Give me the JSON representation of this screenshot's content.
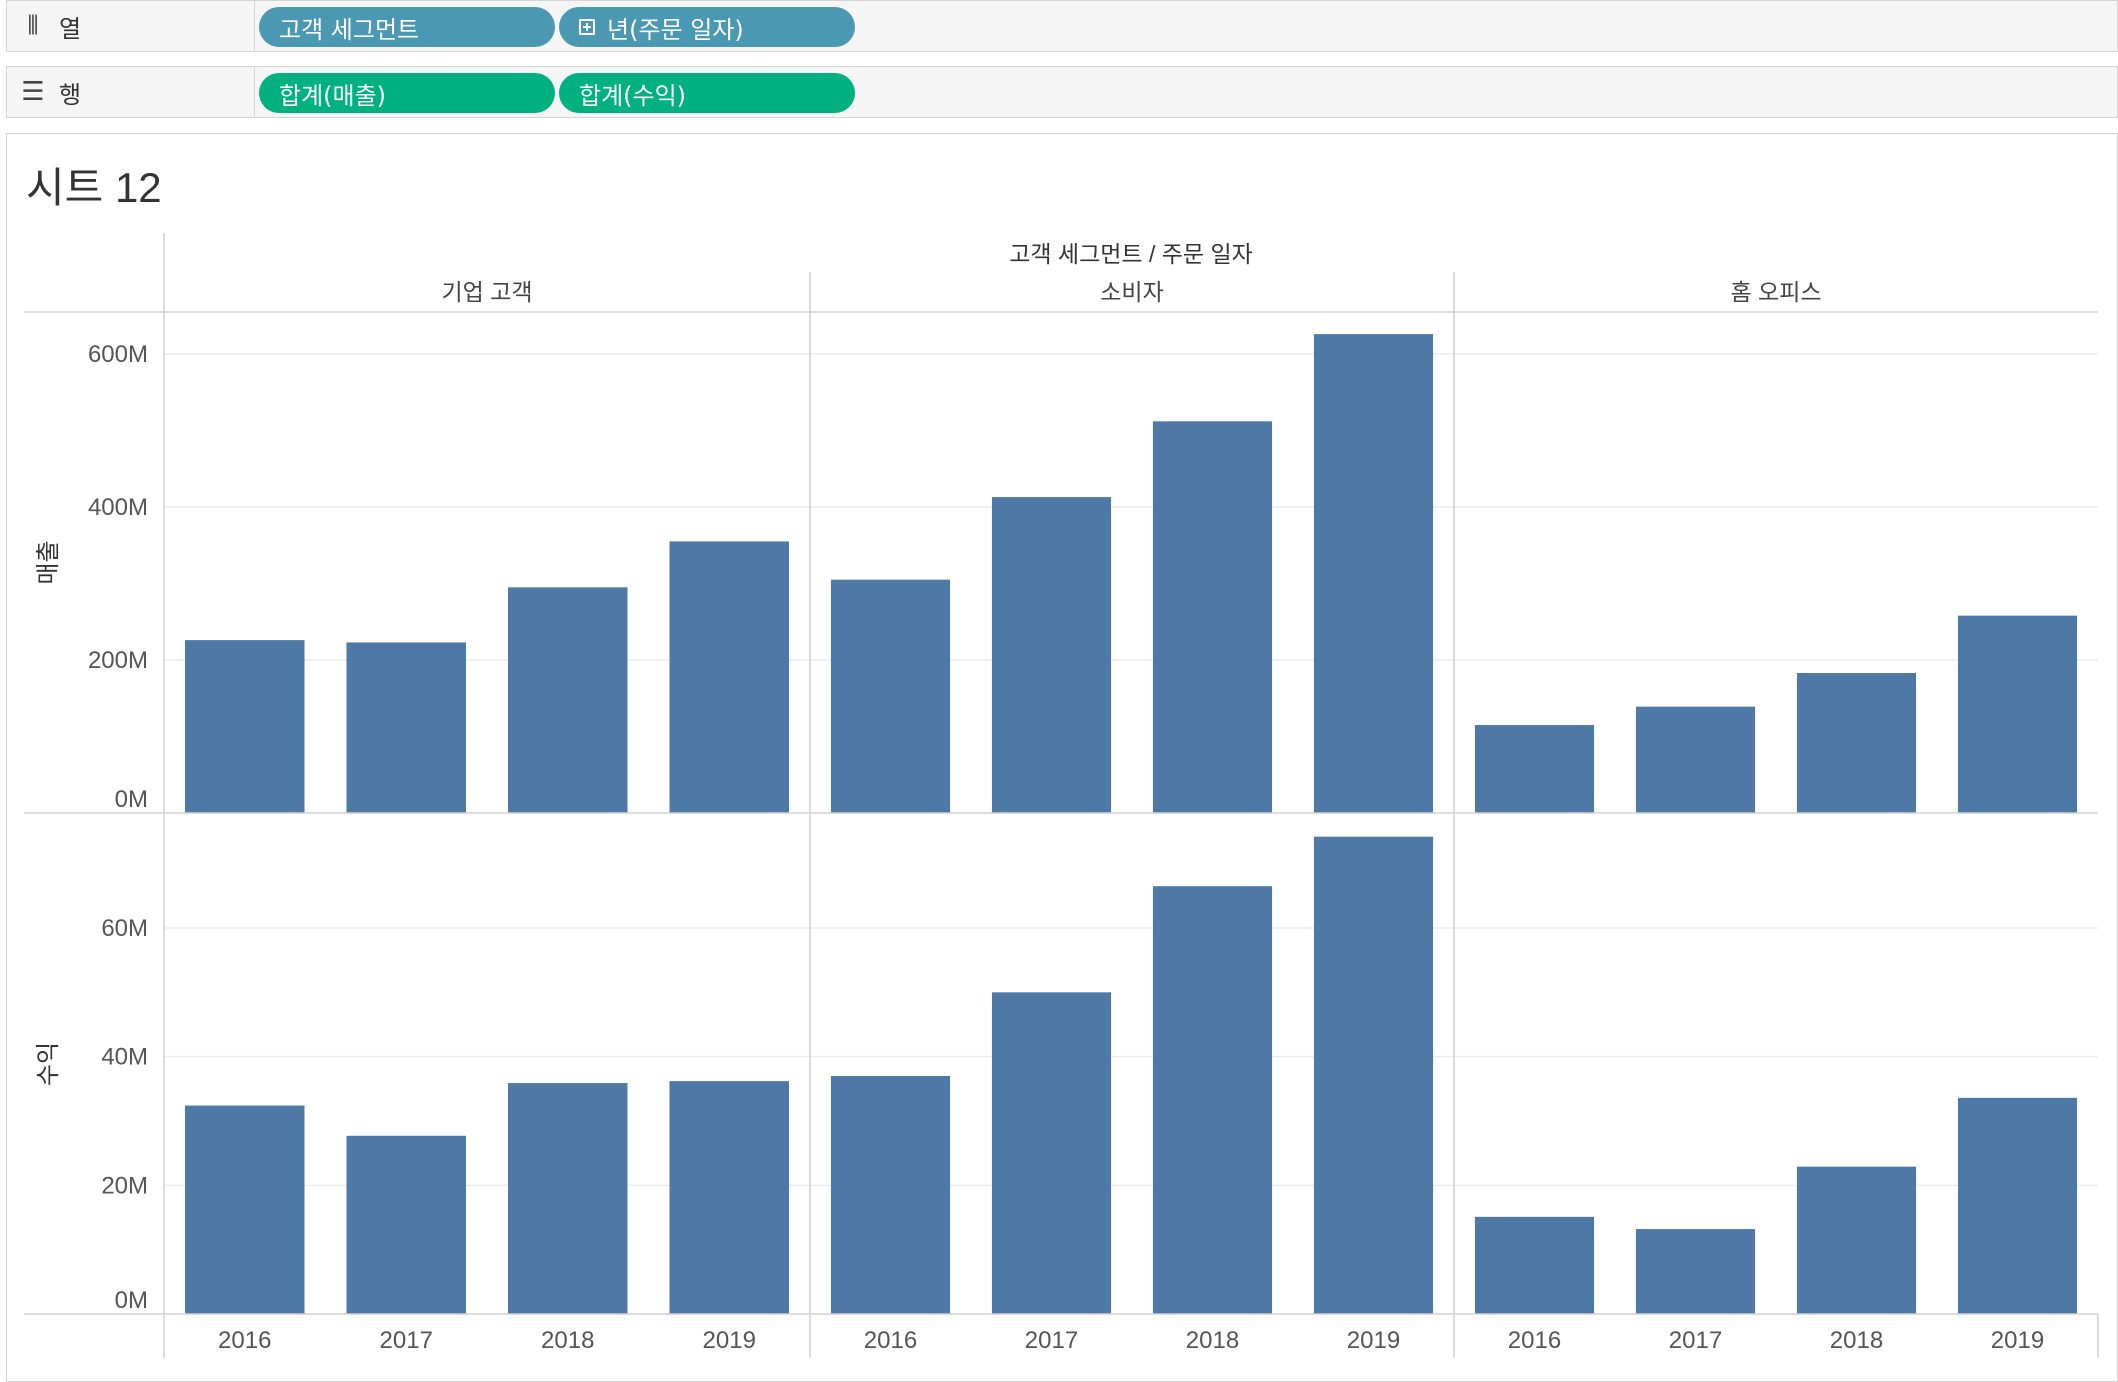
{
  "shelves": {
    "columns": {
      "label": "열",
      "icon": "columns-icon",
      "pills": [
        {
          "label": "고객 세그먼트",
          "kind": "dimension"
        },
        {
          "label": "년(주문 일자)",
          "kind": "dimension",
          "icon": "expand-plus-icon"
        }
      ]
    },
    "rows": {
      "label": "행",
      "icon": "rows-list-icon",
      "pills": [
        {
          "label": "합계(매출)",
          "kind": "measure"
        },
        {
          "label": "합계(수익)",
          "kind": "measure"
        }
      ]
    }
  },
  "sheet": {
    "title": "시트 12"
  },
  "colors": {
    "bar": "#4e79a7",
    "dimension_pill": "#4a98b2",
    "measure_pill": "#00b180"
  },
  "chart_data": {
    "type": "bar",
    "column_header": "고객 세그먼트 / 주문 일자",
    "segments": [
      "기업 고객",
      "소비자",
      "홈 오피스"
    ],
    "categories": [
      "2016",
      "2017",
      "2018",
      "2019"
    ],
    "grid": true,
    "panels": [
      {
        "measure": "매출",
        "ylim": [
          0,
          660
        ],
        "ticks": [
          0,
          200,
          400,
          600
        ],
        "tick_labels": [
          "0M",
          "200M",
          "400M",
          "600M"
        ],
        "values": [
          [
            226,
            223,
            295,
            355
          ],
          [
            305,
            413,
            512,
            626
          ],
          [
            115,
            139,
            183,
            258
          ]
        ]
      },
      {
        "measure": "수익",
        "ylim": [
          0,
          76
        ],
        "ticks": [
          0,
          20,
          40,
          60
        ],
        "tick_labels": [
          "0M",
          "20M",
          "40M",
          "60M"
        ],
        "values": [
          [
            32.4,
            27.7,
            35.9,
            36.2
          ],
          [
            37,
            50,
            66.5,
            74.2
          ],
          [
            15.1,
            13.2,
            22.9,
            33.6
          ]
        ]
      }
    ]
  }
}
